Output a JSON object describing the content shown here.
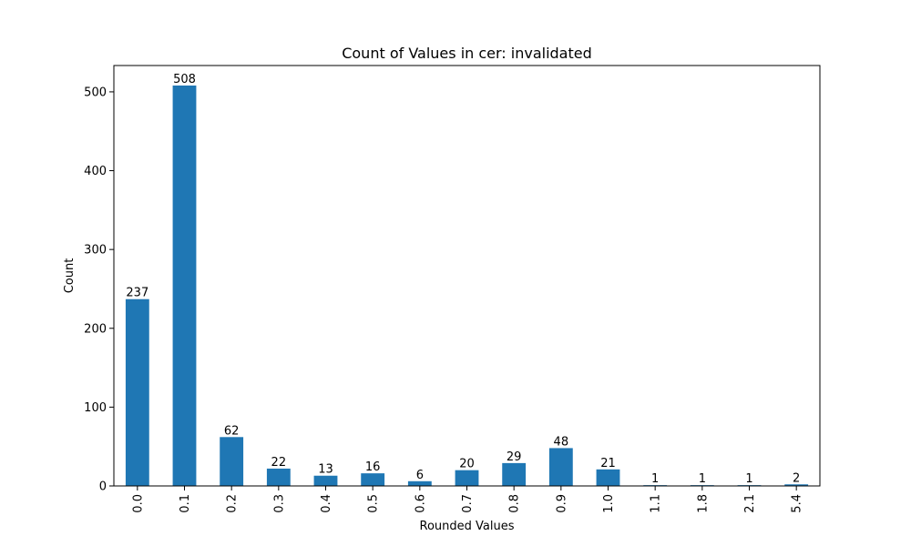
{
  "chart_data": {
    "type": "bar",
    "title": "Count of Values in cer: invalidated",
    "xlabel": "Rounded Values",
    "ylabel": "Count",
    "categories": [
      "0.0",
      "0.1",
      "0.2",
      "0.3",
      "0.4",
      "0.5",
      "0.6",
      "0.7",
      "0.8",
      "0.9",
      "1.0",
      "1.1",
      "1.8",
      "2.1",
      "5.4"
    ],
    "values": [
      237,
      508,
      62,
      22,
      13,
      16,
      6,
      20,
      29,
      48,
      21,
      1,
      1,
      1,
      2
    ],
    "ylim": [
      0,
      533.4
    ],
    "yticks": [
      0,
      100,
      200,
      300,
      400,
      500
    ],
    "bar_color": "#1f77b4",
    "grid": false,
    "data_labels": true
  }
}
